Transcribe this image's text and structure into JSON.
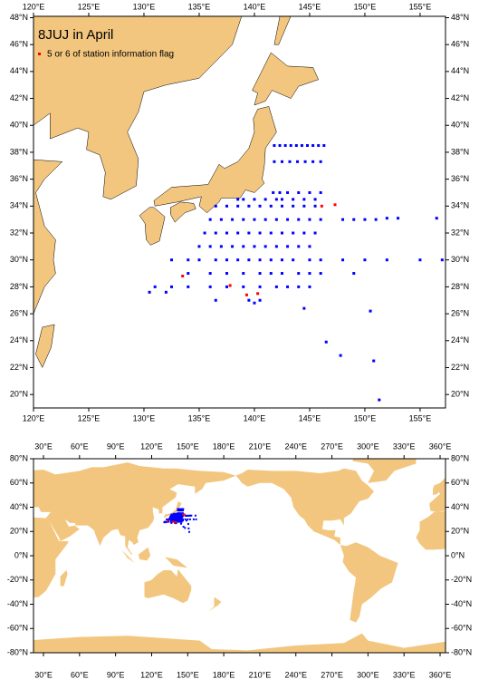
{
  "title": "8JUJ in April",
  "legend": {
    "label": "5 or 6 of station information flag",
    "color": "#ff0000"
  },
  "regional_map": {
    "xlim": [
      120,
      157.3
    ],
    "ylim": [
      19,
      48.1
    ],
    "xticks": [
      {
        "value": 120,
        "label": "120°E"
      },
      {
        "value": 125,
        "label": "125°E"
      },
      {
        "value": 130,
        "label": "130°E"
      },
      {
        "value": 135,
        "label": "135°E"
      },
      {
        "value": 140,
        "label": "140°E"
      },
      {
        "value": 145,
        "label": "145°E"
      },
      {
        "value": 150,
        "label": "150°E"
      },
      {
        "value": 155,
        "label": "155°E"
      }
    ],
    "yticks": [
      {
        "value": 20,
        "label": "20°N"
      },
      {
        "value": 22,
        "label": "22°N"
      },
      {
        "value": 24,
        "label": "24°N"
      },
      {
        "value": 26,
        "label": "26°N"
      },
      {
        "value": 28,
        "label": "28°N"
      },
      {
        "value": 30,
        "label": "30°N"
      },
      {
        "value": 32,
        "label": "32°N"
      },
      {
        "value": 34,
        "label": "34°N"
      },
      {
        "value": 36,
        "label": "36°N"
      },
      {
        "value": 38,
        "label": "38°N"
      },
      {
        "value": 40,
        "label": "40°N"
      },
      {
        "value": 42,
        "label": "42°N"
      },
      {
        "value": 44,
        "label": "44°N"
      },
      {
        "value": 46,
        "label": "46°N"
      },
      {
        "value": 48,
        "label": "48°N"
      }
    ]
  },
  "global_map": {
    "xlim": [
      21.7,
      364.5
    ],
    "ylim": [
      -80,
      80
    ],
    "xticks": [
      {
        "value": 30,
        "label": "30°E"
      },
      {
        "value": 60,
        "label": "60°E"
      },
      {
        "value": 90,
        "label": "90°E"
      },
      {
        "value": 120,
        "label": "120°E"
      },
      {
        "value": 150,
        "label": "150°E"
      },
      {
        "value": 180,
        "label": "180°E"
      },
      {
        "value": 210,
        "label": "210°E"
      },
      {
        "value": 240,
        "label": "240°E"
      },
      {
        "value": 270,
        "label": "270°E"
      },
      {
        "value": 300,
        "label": "300°E"
      },
      {
        "value": 330,
        "label": "330°E"
      },
      {
        "value": 360,
        "label": "360°E"
      }
    ],
    "yticks": [
      {
        "value": -80,
        "label": "-80°N"
      },
      {
        "value": -60,
        "label": "-60°N"
      },
      {
        "value": -40,
        "label": "-40°N"
      },
      {
        "value": -20,
        "label": "-20°N"
      },
      {
        "value": 0,
        "label": "0°N"
      },
      {
        "value": 20,
        "label": "20°N"
      },
      {
        "value": 40,
        "label": "40°N"
      },
      {
        "value": 60,
        "label": "60°N"
      },
      {
        "value": 80,
        "label": "80°N"
      }
    ]
  },
  "land_color": "#f3c67f",
  "stations": {
    "color": "#0000ff",
    "points": [
      [
        141.8,
        38.5
      ],
      [
        142.3,
        38.5
      ],
      [
        142.8,
        38.5
      ],
      [
        143.3,
        38.5
      ],
      [
        143.8,
        38.5
      ],
      [
        144.3,
        38.5
      ],
      [
        144.8,
        38.5
      ],
      [
        145.3,
        38.5
      ],
      [
        145.8,
        38.5
      ],
      [
        146.3,
        38.5
      ],
      [
        141.8,
        37.3
      ],
      [
        142.5,
        37.3
      ],
      [
        143.2,
        37.3
      ],
      [
        143.9,
        37.3
      ],
      [
        144.6,
        37.3
      ],
      [
        145.3,
        37.3
      ],
      [
        146,
        37.3
      ],
      [
        141.7,
        35
      ],
      [
        142.3,
        35
      ],
      [
        143,
        35
      ],
      [
        144,
        35
      ],
      [
        145,
        35
      ],
      [
        146,
        35
      ],
      [
        138.5,
        34.5
      ],
      [
        139,
        34.5
      ],
      [
        140,
        34.5
      ],
      [
        141,
        34.5
      ],
      [
        142,
        34.5
      ],
      [
        142.5,
        34.5
      ],
      [
        143.5,
        34.5
      ],
      [
        144.5,
        34.5
      ],
      [
        145.5,
        34.5
      ],
      [
        136.5,
        34
      ],
      [
        137.5,
        34
      ],
      [
        138.5,
        34
      ],
      [
        139.5,
        34
      ],
      [
        140.5,
        34
      ],
      [
        141.5,
        34
      ],
      [
        142.5,
        34
      ],
      [
        143.5,
        34
      ],
      [
        144.5,
        34
      ],
      [
        145.5,
        34
      ],
      [
        136,
        33
      ],
      [
        137,
        33
      ],
      [
        138,
        33
      ],
      [
        139,
        33
      ],
      [
        140,
        33
      ],
      [
        141,
        33
      ],
      [
        142,
        33
      ],
      [
        143,
        33
      ],
      [
        144,
        33
      ],
      [
        145,
        33
      ],
      [
        146,
        33
      ],
      [
        148,
        33
      ],
      [
        149,
        33
      ],
      [
        150,
        33
      ],
      [
        151,
        33
      ],
      [
        152,
        33.1
      ],
      [
        153,
        33.1
      ],
      [
        156.5,
        33.1
      ],
      [
        135.5,
        32
      ],
      [
        136.5,
        32
      ],
      [
        137.5,
        32
      ],
      [
        138.5,
        32
      ],
      [
        139.5,
        32
      ],
      [
        140.5,
        32
      ],
      [
        141.5,
        32
      ],
      [
        142.5,
        32
      ],
      [
        143.5,
        32
      ],
      [
        144.5,
        32
      ],
      [
        145.5,
        32
      ],
      [
        135,
        31
      ],
      [
        136,
        31
      ],
      [
        137,
        31
      ],
      [
        138,
        31
      ],
      [
        139,
        31
      ],
      [
        140,
        31
      ],
      [
        141,
        31
      ],
      [
        142,
        31
      ],
      [
        143,
        31
      ],
      [
        144,
        31
      ],
      [
        145,
        31
      ],
      [
        132.5,
        30
      ],
      [
        134,
        30
      ],
      [
        135,
        30
      ],
      [
        136.5,
        30
      ],
      [
        137.5,
        30
      ],
      [
        138.5,
        30
      ],
      [
        139.5,
        30
      ],
      [
        140.5,
        30
      ],
      [
        141.5,
        30
      ],
      [
        142.5,
        30
      ],
      [
        143.5,
        30
      ],
      [
        145,
        30
      ],
      [
        146,
        30
      ],
      [
        148,
        30
      ],
      [
        150,
        30
      ],
      [
        152,
        30
      ],
      [
        155,
        30
      ],
      [
        157,
        30
      ],
      [
        134,
        29
      ],
      [
        136,
        29
      ],
      [
        137.5,
        29
      ],
      [
        139,
        29
      ],
      [
        140.5,
        29
      ],
      [
        141.5,
        29
      ],
      [
        142.5,
        29
      ],
      [
        144,
        29
      ],
      [
        145,
        29
      ],
      [
        146,
        29
      ],
      [
        149,
        29
      ],
      [
        131,
        28
      ],
      [
        132.5,
        28
      ],
      [
        134,
        28
      ],
      [
        136,
        28
      ],
      [
        137.5,
        28
      ],
      [
        139,
        28
      ],
      [
        140.5,
        28
      ],
      [
        142,
        28
      ],
      [
        143,
        28
      ],
      [
        144,
        28
      ],
      [
        145,
        28
      ],
      [
        130.5,
        27.6
      ],
      [
        132,
        27.6
      ],
      [
        136.5,
        27
      ],
      [
        139.5,
        27
      ],
      [
        140,
        26.8
      ],
      [
        140.5,
        27
      ],
      [
        144.5,
        26.4
      ],
      [
        150.5,
        26.2
      ],
      [
        146.5,
        23.9
      ],
      [
        147.8,
        22.9
      ],
      [
        150.8,
        22.5
      ],
      [
        151.3,
        19.6
      ]
    ]
  },
  "flagged_stations": {
    "points": [
      [
        133.5,
        28.8
      ],
      [
        137.8,
        28.1
      ],
      [
        139.3,
        27.4
      ],
      [
        140.3,
        27.5
      ],
      [
        146.1,
        34
      ],
      [
        147.3,
        34.1
      ]
    ]
  }
}
